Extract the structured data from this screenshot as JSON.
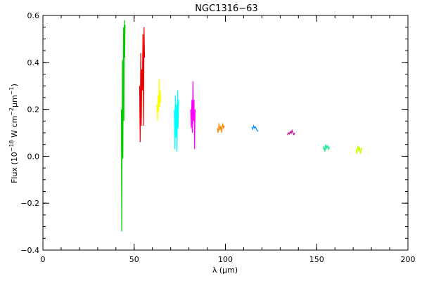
{
  "chart_data": {
    "type": "line",
    "title": "NGC1316−63",
    "xlabel": "λ (μm)",
    "ylabel_parts": {
      "base": "Flux (10",
      "exp1": "−18",
      "mid": " W cm",
      "exp2": "−2",
      "mid2": "μm",
      "exp3": "−1",
      "end": ")"
    },
    "xlim": [
      0,
      200
    ],
    "ylim": [
      -0.4,
      0.6
    ],
    "xticks": [
      0,
      50,
      100,
      150,
      200
    ],
    "xtick_labels": [
      "0",
      "50",
      "100",
      "150",
      "200"
    ],
    "yticks": [
      -0.4,
      -0.2,
      0.0,
      0.2,
      0.4,
      0.6
    ],
    "ytick_labels": [
      "−0.4",
      "−0.2",
      "0.0",
      "0.2",
      "0.4",
      "0.6"
    ],
    "x_minor_step": 10,
    "y_minor_step": 0.05,
    "grid": false,
    "series": [
      {
        "color": "#00cc00",
        "x": [
          43.0,
          43.2,
          43.4,
          43.6,
          43.8,
          44.0,
          44.2,
          44.4,
          44.6,
          44.8,
          45.0
        ],
        "y": [
          0.2,
          -0.32,
          0.1,
          0.41,
          -0.01,
          0.33,
          0.55,
          0.15,
          0.58,
          0.42,
          0.56
        ]
      },
      {
        "color": "#ee0000",
        "x": [
          53.0,
          53.3,
          53.6,
          53.9,
          54.2,
          54.5,
          54.8,
          55.1,
          55.4,
          55.7
        ],
        "y": [
          0.3,
          0.06,
          0.44,
          0.13,
          0.37,
          0.28,
          0.52,
          0.13,
          0.55,
          0.42
        ]
      },
      {
        "color": "#ffff00",
        "x": [
          62.5,
          62.8,
          63.1,
          63.4,
          63.7,
          64.0,
          64.3,
          64.6
        ],
        "y": [
          0.22,
          0.15,
          0.26,
          0.19,
          0.33,
          0.21,
          0.28,
          0.23
        ]
      },
      {
        "color": "#00ffff",
        "x": [
          72.0,
          72.3,
          72.6,
          72.9,
          73.2,
          73.5,
          73.8,
          74.1,
          74.4
        ],
        "y": [
          0.2,
          0.03,
          0.26,
          0.08,
          0.22,
          0.02,
          0.28,
          0.12,
          0.24
        ]
      },
      {
        "color": "#ff00ff",
        "x": [
          81.0,
          81.3,
          81.6,
          81.9,
          82.2,
          82.5,
          82.8,
          83.1,
          83.4
        ],
        "y": [
          0.2,
          0.12,
          0.24,
          0.1,
          0.32,
          0.15,
          0.24,
          0.03,
          0.2
        ]
      },
      {
        "color": "#ff8800",
        "x": [
          95.5,
          96.0,
          96.5,
          97.0,
          97.5,
          98.0,
          98.5,
          99.0,
          99.5
        ],
        "y": [
          0.12,
          0.1,
          0.14,
          0.11,
          0.13,
          0.1,
          0.14,
          0.12,
          0.13
        ]
      },
      {
        "color": "#0088ff",
        "x": [
          114.5,
          115.0,
          115.5,
          116.0,
          116.5,
          117.0,
          117.5,
          118.0
        ],
        "y": [
          0.125,
          0.115,
          0.13,
          0.12,
          0.125,
          0.115,
          0.11,
          0.105
        ]
      },
      {
        "color": "#cc0099",
        "x": [
          134.0,
          134.5,
          135.0,
          135.5,
          136.0,
          136.5,
          137.0,
          137.5,
          138.0
        ],
        "y": [
          0.09,
          0.1,
          0.095,
          0.105,
          0.098,
          0.11,
          0.1,
          0.092,
          0.1
        ]
      },
      {
        "color": "#00ee88",
        "x": [
          153.5,
          154.0,
          154.5,
          155.0,
          155.5,
          156.0,
          156.5,
          157.0
        ],
        "y": [
          0.03,
          0.04,
          0.02,
          0.05,
          0.035,
          0.045,
          0.03,
          0.04
        ]
      },
      {
        "color": "#ccff00",
        "x": [
          171.5,
          172.0,
          172.5,
          173.0,
          173.5,
          174.0,
          174.5,
          175.0
        ],
        "y": [
          0.03,
          0.01,
          0.045,
          0.02,
          0.04,
          0.01,
          0.035,
          0.03
        ]
      }
    ]
  }
}
